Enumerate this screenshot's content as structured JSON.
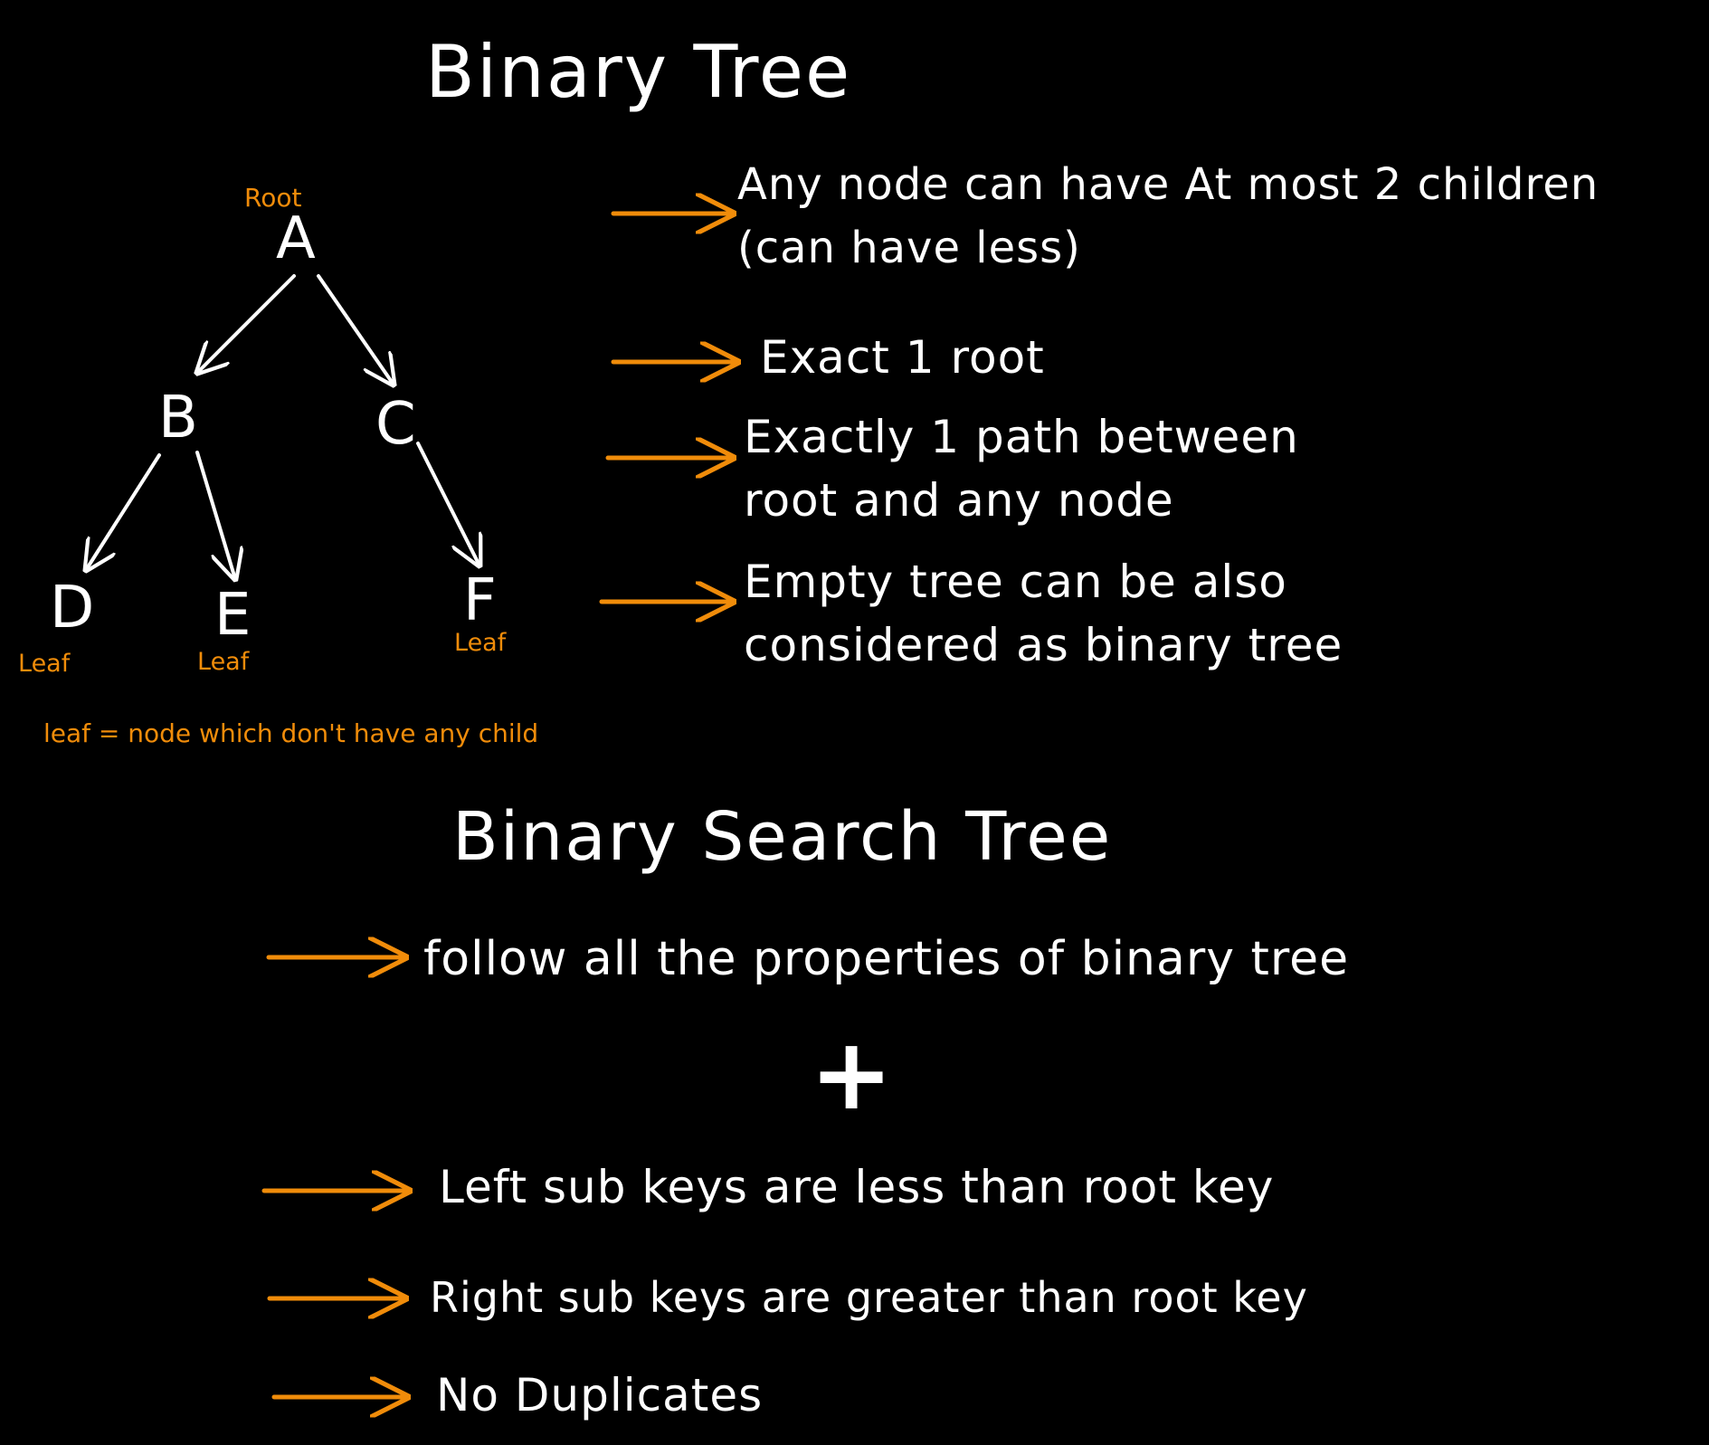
{
  "binary_tree": {
    "title": "Binary Tree",
    "root_label": "Root",
    "leaf_label": "Leaf",
    "leaf_definition": "leaf = node which don't have any child",
    "nodes": {
      "a": "A",
      "b": "B",
      "c": "C",
      "d": "D",
      "e": "E",
      "f": "F"
    },
    "properties": [
      {
        "lines": [
          "Any node can have At most 2 children",
          "(can have less)"
        ]
      },
      {
        "lines": [
          "Exact 1 root"
        ]
      },
      {
        "lines": [
          "Exactly 1 path between",
          "root and any node"
        ]
      },
      {
        "lines": [
          "Empty tree can be also",
          "considered as binary tree"
        ]
      }
    ]
  },
  "binary_search_tree": {
    "title": "Binary Search Tree",
    "intro": "follow all the properties of binary tree",
    "plus": "+",
    "rules": [
      "Left sub keys are less than root key",
      "Right sub keys are greater than root key",
      "No Duplicates"
    ]
  },
  "colors": {
    "background": "#000000",
    "text": "#ffffff",
    "accent": "#f08c0a"
  }
}
